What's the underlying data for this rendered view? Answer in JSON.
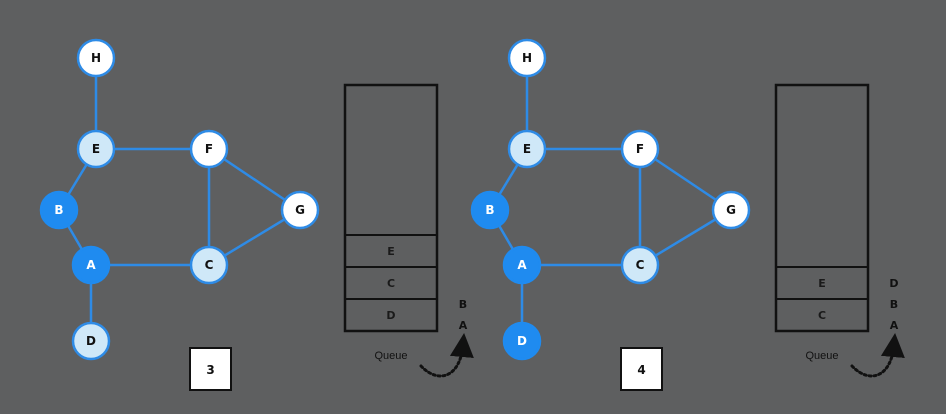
{
  "colors": {
    "background": "#5e5f60",
    "edge": "#2e8be6",
    "visited": "#1f8bf0",
    "queued": "#cfe8f8",
    "unvisited": "#ffffff",
    "ink": "#111111"
  },
  "panels": [
    {
      "step": "3",
      "queue_caption": "Queue",
      "queue_cells": [
        "E",
        "C",
        "D"
      ],
      "dequeued": [
        "B",
        "A"
      ],
      "node_states": {
        "A": "visited",
        "B": "visited",
        "C": "queued",
        "D": "queued",
        "E": "queued",
        "F": "unvisited",
        "G": "unvisited",
        "H": "unvisited"
      }
    },
    {
      "step": "4",
      "queue_caption": "Queue",
      "queue_cells": [
        "E",
        "C"
      ],
      "dequeued": [
        "D",
        "B",
        "A"
      ],
      "node_states": {
        "A": "visited",
        "B": "visited",
        "C": "queued",
        "D": "visited",
        "E": "queued",
        "F": "unvisited",
        "G": "unvisited",
        "H": "unvisited"
      }
    }
  ],
  "graph": {
    "nodes": [
      "H",
      "E",
      "F",
      "B",
      "G",
      "A",
      "C",
      "D"
    ],
    "edges": [
      [
        "H",
        "E"
      ],
      [
        "E",
        "F"
      ],
      [
        "E",
        "B"
      ],
      [
        "B",
        "A"
      ],
      [
        "A",
        "C"
      ],
      [
        "A",
        "D"
      ],
      [
        "F",
        "C"
      ],
      [
        "F",
        "G"
      ],
      [
        "C",
        "G"
      ]
    ]
  }
}
